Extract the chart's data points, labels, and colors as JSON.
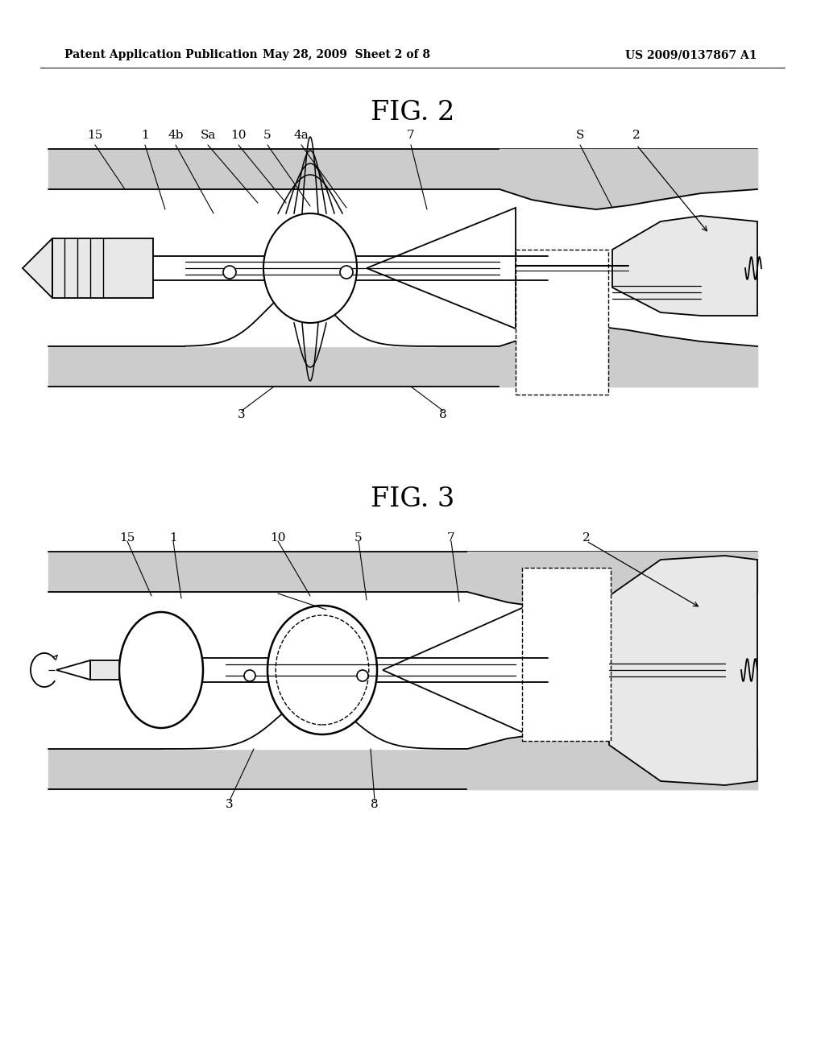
{
  "bg_color": "#ffffff",
  "header_left": "Patent Application Publication",
  "header_center": "May 28, 2009  Sheet 2 of 8",
  "header_right": "US 2009/0137867 A1",
  "fig2_title": "FIG. 2",
  "fig3_title": "FIG. 3",
  "gray_fill": "#cccccc",
  "light_gray": "#e8e8e8",
  "white": "#ffffff",
  "line_color": "#000000"
}
